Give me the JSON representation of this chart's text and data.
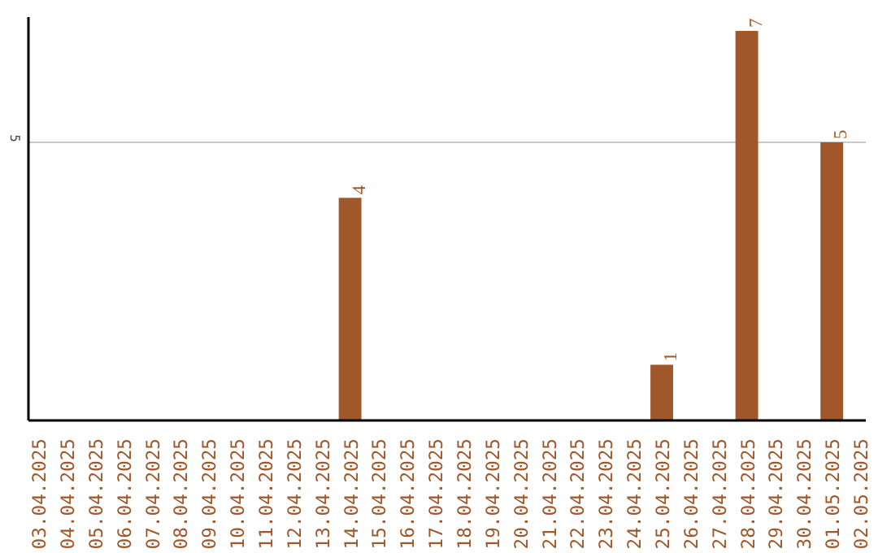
{
  "chart_data": {
    "type": "bar",
    "categories": [
      "03.04.2025",
      "04.04.2025",
      "05.04.2025",
      "06.04.2025",
      "07.04.2025",
      "08.04.2025",
      "09.04.2025",
      "10.04.2025",
      "11.04.2025",
      "12.04.2025",
      "13.04.2025",
      "14.04.2025",
      "15.04.2025",
      "16.04.2025",
      "17.04.2025",
      "18.04.2025",
      "19.04.2025",
      "20.04.2025",
      "21.04.2025",
      "22.04.2025",
      "23.04.2025",
      "24.04.2025",
      "25.04.2025",
      "26.04.2025",
      "27.04.2025",
      "28.04.2025",
      "29.04.2025",
      "30.04.2025",
      "01.05.2025",
      "02.05.2025"
    ],
    "values": [
      0,
      0,
      0,
      0,
      0,
      0,
      0,
      0,
      0,
      0,
      0,
      4,
      0,
      0,
      0,
      0,
      0,
      0,
      0,
      0,
      0,
      0,
      1,
      0,
      0,
      7,
      0,
      0,
      5,
      0
    ],
    "color": "#a0572a",
    "value_labels": [
      null,
      null,
      null,
      null,
      null,
      null,
      null,
      null,
      null,
      null,
      null,
      "4",
      null,
      null,
      null,
      null,
      null,
      null,
      null,
      null,
      null,
      null,
      "1",
      null,
      null,
      "7",
      null,
      null,
      "5",
      null
    ],
    "ylim": [
      0,
      7.25
    ],
    "yticks": [
      5
    ],
    "grid": "y"
  }
}
